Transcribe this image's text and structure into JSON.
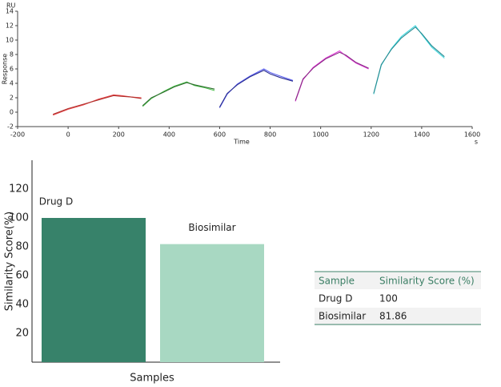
{
  "chart_data": [
    {
      "type": "line",
      "ylabel": "Response",
      "y_unit": "RU",
      "xlabel": "Time",
      "x_unit": "s",
      "xlim": [
        -200,
        1600
      ],
      "xticks": [
        -200,
        0,
        200,
        400,
        600,
        800,
        1000,
        1200,
        1400,
        1600
      ],
      "ylim": [
        -2,
        14
      ],
      "yticks": [
        -2,
        0,
        2,
        4,
        6,
        8,
        10,
        12,
        14
      ],
      "series": [
        {
          "color": "#e8464a",
          "x": [
            -60,
            0,
            60,
            120,
            180,
            210,
            250,
            290
          ],
          "values": [
            -0.4,
            0.4,
            1.0,
            1.8,
            2.4,
            2.3,
            2.1,
            2.0
          ]
        },
        {
          "color": "#b0302c",
          "x": [
            -60,
            0,
            60,
            120,
            180,
            210,
            250,
            290
          ],
          "values": [
            -0.3,
            0.5,
            1.1,
            1.7,
            2.3,
            2.2,
            2.1,
            1.9
          ]
        },
        {
          "color": "#4cc04c",
          "x": [
            295,
            330,
            380,
            420,
            470,
            500,
            540,
            580
          ],
          "values": [
            0.8,
            1.9,
            2.9,
            3.6,
            4.2,
            3.7,
            3.4,
            3.0
          ]
        },
        {
          "color": "#2e6e2e",
          "x": [
            295,
            330,
            380,
            420,
            470,
            500,
            540,
            580
          ],
          "values": [
            0.9,
            2.0,
            2.8,
            3.5,
            4.1,
            3.8,
            3.5,
            3.2
          ]
        },
        {
          "color": "#5a5ef0",
          "x": [
            600,
            630,
            670,
            720,
            775,
            800,
            840,
            890
          ],
          "values": [
            0.6,
            2.5,
            3.9,
            5.0,
            6.0,
            5.5,
            5.0,
            4.4
          ]
        },
        {
          "color": "#2a2e90",
          "x": [
            600,
            630,
            670,
            720,
            775,
            800,
            840,
            890
          ],
          "values": [
            0.7,
            2.6,
            3.8,
            4.9,
            5.8,
            5.3,
            4.8,
            4.3
          ]
        },
        {
          "color": "#e040d8",
          "x": [
            900,
            930,
            970,
            1020,
            1075,
            1100,
            1140,
            1190
          ],
          "values": [
            1.5,
            4.5,
            6.2,
            7.5,
            8.5,
            7.8,
            6.8,
            6.0
          ]
        },
        {
          "color": "#8a2a86",
          "x": [
            900,
            930,
            970,
            1020,
            1075,
            1100,
            1140,
            1190
          ],
          "values": [
            1.6,
            4.6,
            6.1,
            7.4,
            8.3,
            7.9,
            6.9,
            6.1
          ]
        },
        {
          "color": "#40d8e0",
          "x": [
            1210,
            1240,
            1280,
            1320,
            1375,
            1400,
            1440,
            1490
          ],
          "values": [
            2.5,
            6.5,
            8.8,
            10.5,
            12.0,
            10.8,
            9.0,
            7.5
          ]
        },
        {
          "color": "#2a8a90",
          "x": [
            1210,
            1240,
            1280,
            1320,
            1375,
            1400,
            1440,
            1490
          ],
          "values": [
            2.6,
            6.6,
            8.7,
            10.3,
            11.8,
            10.9,
            9.2,
            7.7
          ]
        }
      ]
    },
    {
      "type": "bar",
      "ylabel": "Similarity Score(%)",
      "xlabel": "Samples",
      "categories": [
        "Drug D",
        "Biosimilar"
      ],
      "values": [
        100,
        81.86
      ],
      "colors": [
        "#37826a",
        "#a8d8c2"
      ],
      "ylim": [
        0,
        140
      ],
      "yticks": [
        20,
        40,
        60,
        80,
        100,
        120
      ]
    }
  ],
  "table": {
    "header": [
      "Sample",
      "Similarity Score (%)"
    ],
    "rows": [
      [
        "Drug D",
        100
      ],
      [
        "Biosimilar",
        81.86
      ]
    ]
  }
}
